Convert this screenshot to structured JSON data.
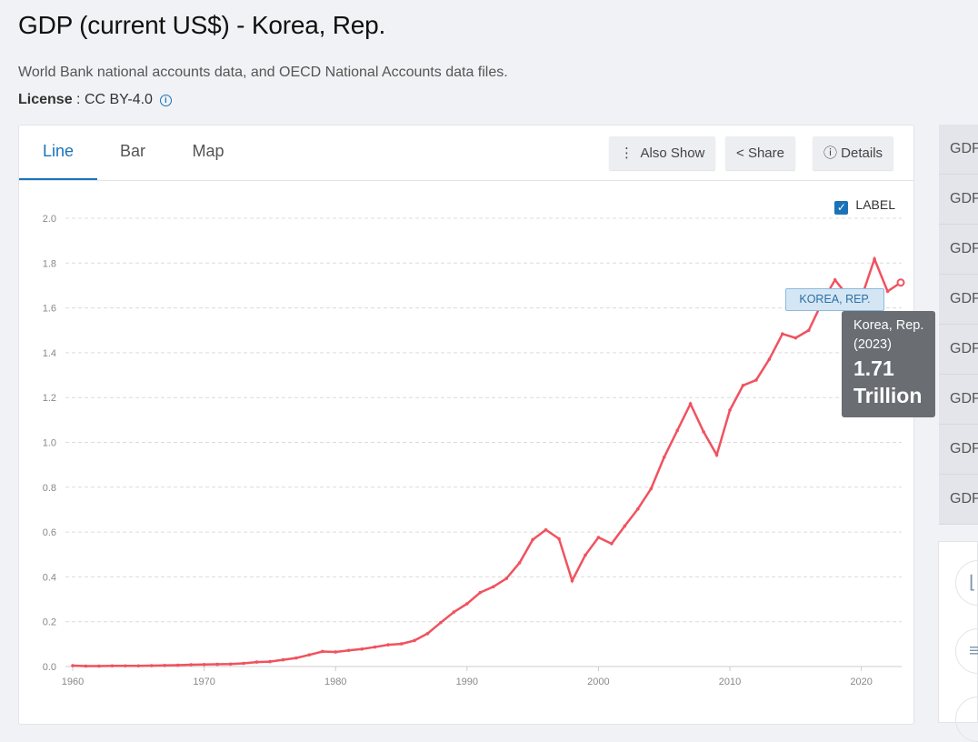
{
  "title": "GDP (current US$) - Korea, Rep.",
  "source": "World Bank national accounts data, and OECD National Accounts data files.",
  "license": {
    "label": "License",
    "value": "CC BY-4.0"
  },
  "tabs": [
    {
      "label": "Line",
      "active": true
    },
    {
      "label": "Bar"
    },
    {
      "label": "Map"
    }
  ],
  "toolbar": {
    "also_show": "Also Show",
    "share": "Share",
    "details": "Details"
  },
  "label_toggle": {
    "label": "LABEL",
    "checked": true
  },
  "sidebar": {
    "items": [
      "GDP",
      "GDP",
      "GDP",
      "GDP",
      "GDP",
      "GDP",
      "GDP",
      "GDP"
    ]
  },
  "tooltip": {
    "name": "Korea, Rep. (2023)",
    "value": "1.71",
    "unit": "Trillion"
  },
  "series_label": "KOREA, REP.",
  "colors": {
    "line": "#f0525f",
    "accent": "#1a73b8"
  },
  "chart_data": {
    "type": "line",
    "xlim": [
      1960,
      2023
    ],
    "ylim": [
      0,
      2.0
    ],
    "yticks": [
      "0.0",
      "0.2",
      "0.4",
      "0.6",
      "0.8",
      "1.0",
      "1.2",
      "1.4",
      "1.6",
      "1.8",
      "2.0"
    ],
    "xticks": [
      "1960",
      "1970",
      "1980",
      "1990",
      "2000",
      "2010",
      "2020"
    ],
    "grid": true,
    "series": [
      {
        "name": "KOREA, REP.",
        "x": [
          1960,
          1961,
          1962,
          1963,
          1964,
          1965,
          1966,
          1967,
          1968,
          1969,
          1970,
          1971,
          1972,
          1973,
          1974,
          1975,
          1976,
          1977,
          1978,
          1979,
          1980,
          1981,
          1982,
          1983,
          1984,
          1985,
          1986,
          1987,
          1988,
          1989,
          1990,
          1991,
          1992,
          1993,
          1994,
          1995,
          1996,
          1997,
          1998,
          1999,
          2000,
          2001,
          2002,
          2003,
          2004,
          2005,
          2006,
          2007,
          2008,
          2009,
          2010,
          2011,
          2012,
          2013,
          2014,
          2015,
          2016,
          2017,
          2018,
          2019,
          2020,
          2021,
          2022,
          2023
        ],
        "values": [
          0.004,
          0.002,
          0.002,
          0.003,
          0.003,
          0.003,
          0.004,
          0.005,
          0.006,
          0.008,
          0.009,
          0.01,
          0.011,
          0.014,
          0.02,
          0.022,
          0.03,
          0.038,
          0.052,
          0.067,
          0.065,
          0.072,
          0.078,
          0.087,
          0.097,
          0.101,
          0.116,
          0.147,
          0.196,
          0.243,
          0.28,
          0.33,
          0.356,
          0.393,
          0.463,
          0.566,
          0.61,
          0.57,
          0.383,
          0.497,
          0.576,
          0.548,
          0.627,
          0.703,
          0.793,
          0.934,
          1.053,
          1.172,
          1.047,
          0.944,
          1.144,
          1.254,
          1.278,
          1.371,
          1.484,
          1.466,
          1.5,
          1.623,
          1.725,
          1.651,
          1.644,
          1.818,
          1.674,
          1.713
        ]
      }
    ]
  }
}
